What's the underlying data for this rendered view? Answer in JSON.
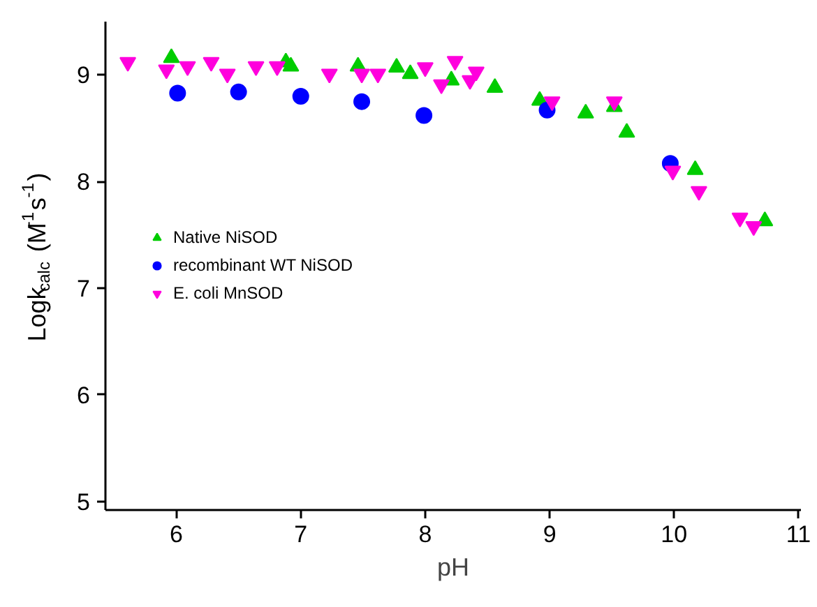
{
  "chart_data": {
    "type": "scatter",
    "xlabel": "pH",
    "ylabel": "Logk$_{calc}$ (M$^{-1}$s$^{-1}$)",
    "xlim": [
      5.43,
      11.02
    ],
    "ylim": [
      4.92,
      9.5
    ],
    "xticks": [
      6,
      7,
      8,
      9,
      10,
      11
    ],
    "yticks": [
      5,
      6,
      7,
      8,
      9
    ],
    "grid": false,
    "legend": "left",
    "series": [
      {
        "name": "Native NiSOD",
        "color": "#00cc00",
        "marker": "triangle",
        "x": [
          5.96,
          6.88,
          6.92,
          7.46,
          7.77,
          7.88,
          8.21,
          8.56,
          8.92,
          9.29,
          9.52,
          9.62,
          10.17,
          10.73
        ],
        "values": [
          9.16,
          9.12,
          9.08,
          9.08,
          9.07,
          9.01,
          8.95,
          8.88,
          8.76,
          8.64,
          8.7,
          8.46,
          8.11,
          7.63
        ]
      },
      {
        "name": "recombinant WT NiSOD",
        "color": "#0000ff",
        "marker": "circle",
        "x": [
          6.01,
          6.5,
          7.0,
          7.49,
          7.99,
          8.98,
          9.97
        ],
        "values": [
          8.83,
          8.84,
          8.8,
          8.75,
          8.62,
          8.67,
          8.17
        ]
      },
      {
        "name": "E. coli MnSOD",
        "color": "#ff00dd",
        "x": [
          5.61,
          5.92,
          6.09,
          6.28,
          6.41,
          6.64,
          6.81,
          7.23,
          7.49,
          7.62,
          8.0,
          8.13,
          8.24,
          8.36,
          8.41,
          9.02,
          9.52,
          9.99,
          10.2,
          10.53,
          10.64
        ],
        "values": [
          9.12,
          9.05,
          9.08,
          9.12,
          9.01,
          9.08,
          9.08,
          9.01,
          9.01,
          9.01,
          9.07,
          8.91,
          9.13,
          8.95,
          9.03,
          8.75,
          8.75,
          8.1,
          7.91,
          7.66,
          7.58
        ]
      }
    ]
  }
}
